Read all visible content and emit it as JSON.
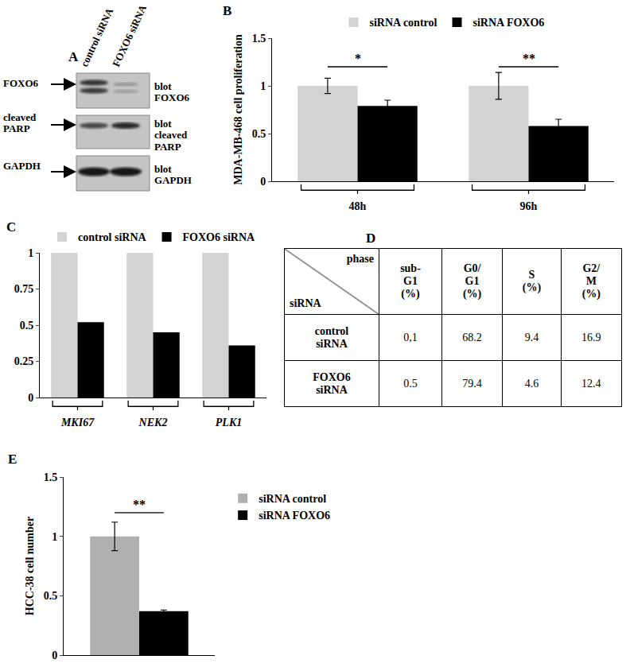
{
  "blot": {
    "panel": "A",
    "lanes": [
      "control siRNA",
      "FOXO6 siRNA"
    ],
    "rows": [
      {
        "label": "FOXO6",
        "blot": "blot FOXO6"
      },
      {
        "label": "cleaved\nPARP",
        "blot": "blot\ncleaved PARP"
      },
      {
        "label": "GAPDH",
        "blot": "blot GAPDH"
      }
    ]
  },
  "chart_data": [
    {
      "panel": "B",
      "type": "bar",
      "ylabel": "MDA-MB-468 cell proliferation",
      "categories": [
        "48h",
        "96h"
      ],
      "series": [
        {
          "name": "siRNA control",
          "color": "#d3d3d3",
          "values": [
            1,
            1
          ],
          "errors": [
            0.08,
            0.14
          ]
        },
        {
          "name": "siRNA FOXO6",
          "color": "#000000",
          "values": [
            0.79,
            0.58
          ],
          "errors": [
            0.06,
            0.07
          ]
        }
      ],
      "ylim": [
        0,
        1.5
      ],
      "yticks": [
        0,
        0.5,
        1,
        1.5
      ],
      "grid": false,
      "legend": "top",
      "annotations": [
        {
          "text": "*",
          "category": "48h",
          "y": 1.2
        },
        {
          "text": "**",
          "category": "96h",
          "y": 1.2
        }
      ]
    },
    {
      "panel": "C",
      "type": "bar",
      "categories": [
        "MKI67",
        "NEK2",
        "PLK1"
      ],
      "series": [
        {
          "name": "control siRNA",
          "color": "#d3d3d3",
          "values": [
            1,
            1,
            1
          ]
        },
        {
          "name": "FOXO6 siRNA",
          "color": "#000000",
          "values": [
            0.52,
            0.45,
            0.36
          ]
        }
      ],
      "ylim": [
        0,
        1
      ],
      "yticks": [
        0,
        0.25,
        0.5,
        0.75,
        1
      ],
      "grid": false,
      "legend": "top"
    },
    {
      "panel": "E",
      "type": "bar",
      "ylabel": "HCC-38 cell number",
      "categories": [
        null
      ],
      "series": [
        {
          "name": "siRNA control",
          "color": "#b0b0b0",
          "values": [
            1
          ],
          "errors": [
            0.12
          ]
        },
        {
          "name": "siRNA FOXO6",
          "color": "#000000",
          "values": [
            0.37
          ],
          "errors": [
            0.01
          ]
        }
      ],
      "ylim": [
        0,
        1.5
      ],
      "yticks": [
        0,
        0.5,
        1,
        1.5
      ],
      "grid": false,
      "legend": "right",
      "tick_labels": "y",
      "annotations": [
        {
          "text": "**",
          "y": 1.2
        }
      ]
    }
  ],
  "table": {
    "panel": "D",
    "corner": {
      "column": "phase",
      "row": "siRNA"
    },
    "columns": [
      "sub-\nG1\n(%)",
      "G0/\nG1\n(%)",
      "S\n(%)",
      "G2/\nM\n(%)"
    ],
    "rows": [
      [
        "control\nsiRNA",
        "0,1",
        "68.2",
        "9.4",
        "16.9"
      ],
      [
        "FOXO6\nsiRNA",
        "0.5",
        "79.4",
        "4.6",
        "12.4"
      ]
    ]
  }
}
